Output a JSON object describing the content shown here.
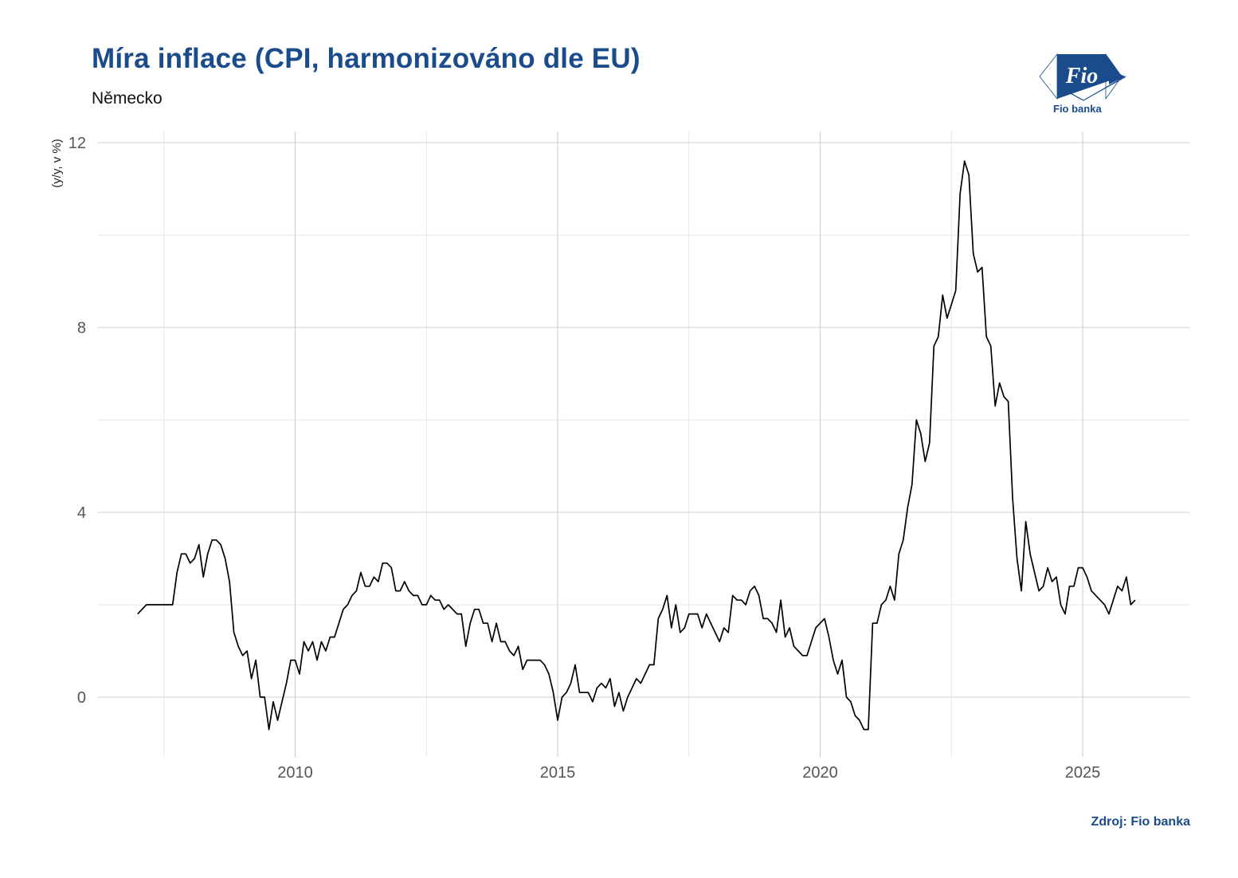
{
  "header": {
    "title": "Míra inflace (CPI, harmonizováno dle EU)",
    "subtitle": "Německo"
  },
  "logo": {
    "text": "Fio",
    "caption": "Fio banka",
    "color": "#1a4c8b"
  },
  "footer": {
    "source": "Zdroj: Fio banka"
  },
  "chart_data": {
    "type": "line",
    "title": "Míra inflace (CPI, harmonizováno dle EU)",
    "subtitle": "Německo",
    "ylabel": "(y/y, v %)",
    "xlabel": "",
    "xlim": [
      2006.5,
      2027.0
    ],
    "ylim": [
      -1.3,
      12.2
    ],
    "x_ticks": [
      2010,
      2015,
      2020,
      2025
    ],
    "y_ticks": [
      0,
      4,
      8,
      12
    ],
    "grid": true,
    "line_color": "#000000",
    "series": [
      {
        "start": "2007-01",
        "frequency": "monthly",
        "values": [
          1.8,
          1.9,
          2.0,
          2.0,
          2.0,
          2.0,
          2.0,
          2.0,
          2.0,
          2.7,
          3.1,
          3.1,
          2.9,
          3.0,
          3.3,
          2.6,
          3.1,
          3.4,
          3.4,
          3.3,
          3.0,
          2.5,
          1.4,
          1.1,
          0.9,
          1.0,
          0.4,
          0.8,
          0.0,
          0.0,
          -0.7,
          -0.1,
          -0.5,
          -0.1,
          0.3,
          0.8,
          0.8,
          0.5,
          1.2,
          1.0,
          1.2,
          0.8,
          1.2,
          1.0,
          1.3,
          1.3,
          1.6,
          1.9,
          2.0,
          2.2,
          2.3,
          2.7,
          2.4,
          2.4,
          2.6,
          2.5,
          2.9,
          2.9,
          2.8,
          2.3,
          2.3,
          2.5,
          2.3,
          2.2,
          2.2,
          2.0,
          2.0,
          2.2,
          2.1,
          2.1,
          1.9,
          2.0,
          1.9,
          1.8,
          1.8,
          1.1,
          1.6,
          1.9,
          1.9,
          1.6,
          1.6,
          1.2,
          1.6,
          1.2,
          1.2,
          1.0,
          0.9,
          1.1,
          0.6,
          0.8,
          0.8,
          0.8,
          0.8,
          0.7,
          0.5,
          0.1,
          -0.5,
          0.0,
          0.1,
          0.3,
          0.7,
          0.1,
          0.1,
          0.1,
          -0.1,
          0.2,
          0.3,
          0.2,
          0.4,
          -0.2,
          0.1,
          -0.3,
          0.0,
          0.2,
          0.4,
          0.3,
          0.5,
          0.7,
          0.7,
          1.7,
          1.9,
          2.2,
          1.5,
          2.0,
          1.4,
          1.5,
          1.8,
          1.8,
          1.8,
          1.5,
          1.8,
          1.6,
          1.4,
          1.2,
          1.5,
          1.4,
          2.2,
          2.1,
          2.1,
          2.0,
          2.3,
          2.4,
          2.2,
          1.7,
          1.7,
          1.6,
          1.4,
          2.1,
          1.3,
          1.5,
          1.1,
          1.0,
          0.9,
          0.9,
          1.2,
          1.5,
          1.6,
          1.7,
          1.3,
          0.8,
          0.5,
          0.8,
          0.0,
          -0.1,
          -0.4,
          -0.5,
          -0.7,
          -0.7,
          1.6,
          1.6,
          2.0,
          2.1,
          2.4,
          2.1,
          3.1,
          3.4,
          4.1,
          4.6,
          6.0,
          5.7,
          5.1,
          5.5,
          7.6,
          7.8,
          8.7,
          8.2,
          8.5,
          8.8,
          10.9,
          11.6,
          11.3,
          9.6,
          9.2,
          9.3,
          7.8,
          7.6,
          6.3,
          6.8,
          6.5,
          6.4,
          4.3,
          3.0,
          2.3,
          3.8,
          3.1,
          2.7,
          2.3,
          2.4,
          2.8,
          2.5,
          2.6,
          2.0,
          1.8,
          2.4,
          2.4,
          2.8,
          2.8,
          2.6,
          2.3,
          2.2,
          2.1,
          2.0,
          1.8,
          2.1,
          2.4,
          2.3,
          2.6,
          2.0,
          2.1
        ]
      }
    ]
  }
}
